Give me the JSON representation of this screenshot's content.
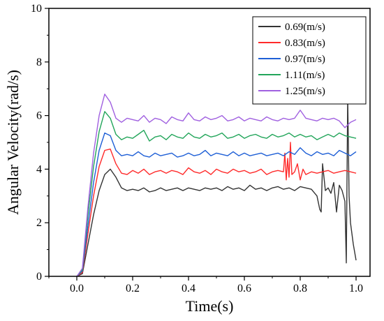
{
  "chart_data": {
    "type": "line",
    "title": "",
    "xlabel": "Time(s)",
    "ylabel": "Angular Velocity(rad/s)",
    "xlim": [
      -0.1,
      1.05
    ],
    "ylim": [
      0,
      10
    ],
    "xticks": [
      0.0,
      0.2,
      0.4,
      0.6,
      0.8,
      1.0
    ],
    "xtick_labels": [
      "0.0",
      "0.2",
      "0.4",
      "0.6",
      "0.8",
      "1.0"
    ],
    "yticks": [
      0,
      2,
      4,
      6,
      8,
      10
    ],
    "ytick_labels": [
      "0",
      "2",
      "4",
      "6",
      "8",
      "10"
    ],
    "grid": false,
    "legend_position": "top-right",
    "series": [
      {
        "name": "0.69(m/s)",
        "color": "#333333",
        "x": [
          0.0,
          0.02,
          0.04,
          0.06,
          0.08,
          0.1,
          0.12,
          0.14,
          0.16,
          0.18,
          0.2,
          0.22,
          0.24,
          0.26,
          0.28,
          0.3,
          0.32,
          0.34,
          0.36,
          0.38,
          0.4,
          0.42,
          0.44,
          0.46,
          0.48,
          0.5,
          0.52,
          0.54,
          0.56,
          0.58,
          0.6,
          0.62,
          0.64,
          0.66,
          0.68,
          0.7,
          0.72,
          0.74,
          0.76,
          0.78,
          0.8,
          0.82,
          0.84,
          0.86,
          0.87,
          0.875,
          0.88,
          0.89,
          0.9,
          0.91,
          0.92,
          0.93,
          0.94,
          0.95,
          0.96,
          0.965,
          0.97,
          0.975,
          0.98,
          0.99,
          1.0
        ],
        "y": [
          0.0,
          0.1,
          1.2,
          2.3,
          3.2,
          3.8,
          4.0,
          3.7,
          3.3,
          3.2,
          3.25,
          3.2,
          3.3,
          3.15,
          3.2,
          3.3,
          3.2,
          3.25,
          3.3,
          3.2,
          3.3,
          3.25,
          3.2,
          3.3,
          3.25,
          3.3,
          3.2,
          3.35,
          3.25,
          3.3,
          3.2,
          3.4,
          3.25,
          3.3,
          3.2,
          3.3,
          3.35,
          3.25,
          3.3,
          3.2,
          3.35,
          3.3,
          3.25,
          3.0,
          2.5,
          2.4,
          4.2,
          3.2,
          3.3,
          3.1,
          3.5,
          2.4,
          3.4,
          3.2,
          2.8,
          0.5,
          6.7,
          3.0,
          2.0,
          1.2,
          0.6
        ]
      },
      {
        "name": "0.83(m/s)",
        "color": "#ff2a2a",
        "x": [
          0.0,
          0.02,
          0.04,
          0.06,
          0.08,
          0.1,
          0.12,
          0.14,
          0.16,
          0.18,
          0.2,
          0.22,
          0.24,
          0.26,
          0.28,
          0.3,
          0.32,
          0.34,
          0.36,
          0.38,
          0.4,
          0.42,
          0.44,
          0.46,
          0.48,
          0.5,
          0.52,
          0.54,
          0.56,
          0.58,
          0.6,
          0.62,
          0.64,
          0.66,
          0.68,
          0.7,
          0.72,
          0.74,
          0.745,
          0.75,
          0.755,
          0.76,
          0.765,
          0.77,
          0.78,
          0.79,
          0.8,
          0.81,
          0.82,
          0.84,
          0.86,
          0.88,
          0.9,
          0.92,
          0.94,
          0.96,
          0.98,
          1.0
        ],
        "y": [
          0.0,
          0.15,
          1.6,
          3.0,
          4.1,
          4.7,
          4.75,
          4.2,
          3.85,
          3.8,
          3.95,
          3.85,
          4.0,
          3.8,
          3.9,
          3.95,
          3.85,
          3.95,
          3.9,
          3.8,
          4.05,
          3.9,
          3.85,
          3.95,
          3.8,
          4.0,
          3.9,
          3.85,
          4.0,
          3.9,
          3.95,
          3.85,
          3.9,
          4.0,
          3.8,
          3.9,
          3.95,
          3.9,
          4.6,
          3.6,
          4.4,
          3.7,
          5.0,
          3.8,
          3.9,
          4.2,
          3.6,
          4.0,
          3.8,
          3.9,
          3.85,
          3.9,
          3.95,
          3.85,
          3.9,
          3.95,
          3.9,
          3.85
        ]
      },
      {
        "name": "0.97(m/s)",
        "color": "#1e5fd6",
        "x": [
          0.0,
          0.02,
          0.04,
          0.06,
          0.08,
          0.1,
          0.12,
          0.14,
          0.16,
          0.18,
          0.2,
          0.22,
          0.24,
          0.26,
          0.28,
          0.3,
          0.32,
          0.34,
          0.36,
          0.38,
          0.4,
          0.42,
          0.44,
          0.46,
          0.48,
          0.5,
          0.52,
          0.54,
          0.56,
          0.58,
          0.6,
          0.62,
          0.64,
          0.66,
          0.68,
          0.7,
          0.72,
          0.74,
          0.76,
          0.78,
          0.8,
          0.82,
          0.84,
          0.86,
          0.88,
          0.9,
          0.92,
          0.94,
          0.96,
          0.98,
          1.0
        ],
        "y": [
          0.0,
          0.2,
          1.9,
          3.5,
          4.7,
          5.35,
          5.25,
          4.7,
          4.5,
          4.55,
          4.5,
          4.65,
          4.5,
          4.45,
          4.6,
          4.5,
          4.55,
          4.6,
          4.45,
          4.5,
          4.6,
          4.5,
          4.55,
          4.7,
          4.5,
          4.6,
          4.55,
          4.5,
          4.65,
          4.5,
          4.6,
          4.5,
          4.55,
          4.6,
          4.5,
          4.55,
          4.6,
          4.5,
          4.65,
          4.55,
          4.8,
          4.6,
          4.5,
          4.65,
          4.55,
          4.6,
          4.5,
          4.7,
          4.6,
          4.5,
          4.65
        ]
      },
      {
        "name": "1.11(m/s)",
        "color": "#22a55a",
        "x": [
          0.0,
          0.02,
          0.04,
          0.06,
          0.08,
          0.1,
          0.12,
          0.14,
          0.16,
          0.18,
          0.2,
          0.22,
          0.24,
          0.26,
          0.28,
          0.3,
          0.32,
          0.34,
          0.36,
          0.38,
          0.4,
          0.42,
          0.44,
          0.46,
          0.48,
          0.5,
          0.52,
          0.54,
          0.56,
          0.58,
          0.6,
          0.62,
          0.64,
          0.66,
          0.68,
          0.7,
          0.72,
          0.74,
          0.76,
          0.78,
          0.8,
          0.82,
          0.84,
          0.86,
          0.88,
          0.9,
          0.92,
          0.94,
          0.96,
          0.98,
          1.0
        ],
        "y": [
          0.0,
          0.25,
          2.3,
          4.1,
          5.4,
          6.15,
          5.9,
          5.3,
          5.1,
          5.2,
          5.15,
          5.3,
          5.45,
          5.05,
          5.2,
          5.25,
          5.1,
          5.3,
          5.2,
          5.15,
          5.35,
          5.2,
          5.15,
          5.3,
          5.2,
          5.25,
          5.35,
          5.15,
          5.2,
          5.3,
          5.15,
          5.25,
          5.3,
          5.2,
          5.15,
          5.3,
          5.2,
          5.25,
          5.35,
          5.2,
          5.3,
          5.2,
          5.25,
          5.1,
          5.2,
          5.3,
          5.2,
          5.35,
          5.25,
          5.2,
          5.15
        ]
      },
      {
        "name": "1.25(m/s)",
        "color": "#a060e0",
        "x": [
          0.0,
          0.02,
          0.04,
          0.06,
          0.08,
          0.1,
          0.12,
          0.14,
          0.16,
          0.18,
          0.2,
          0.22,
          0.24,
          0.26,
          0.28,
          0.3,
          0.32,
          0.34,
          0.36,
          0.38,
          0.4,
          0.42,
          0.44,
          0.46,
          0.48,
          0.5,
          0.52,
          0.54,
          0.56,
          0.58,
          0.6,
          0.62,
          0.64,
          0.66,
          0.68,
          0.7,
          0.72,
          0.74,
          0.76,
          0.78,
          0.8,
          0.82,
          0.84,
          0.86,
          0.88,
          0.9,
          0.92,
          0.94,
          0.96,
          0.98,
          1.0
        ],
        "y": [
          0.0,
          0.3,
          2.6,
          4.6,
          6.0,
          6.8,
          6.5,
          5.9,
          5.75,
          5.9,
          5.85,
          5.8,
          6.0,
          5.75,
          5.9,
          5.85,
          5.7,
          5.95,
          5.85,
          5.8,
          6.1,
          5.85,
          5.8,
          5.95,
          5.85,
          5.9,
          6.0,
          5.8,
          5.85,
          5.95,
          5.8,
          5.9,
          5.85,
          5.8,
          5.95,
          5.85,
          5.8,
          5.9,
          5.85,
          5.9,
          6.2,
          5.9,
          5.85,
          5.8,
          5.9,
          5.85,
          5.9,
          5.8,
          5.55,
          5.75,
          5.85
        ]
      }
    ]
  }
}
